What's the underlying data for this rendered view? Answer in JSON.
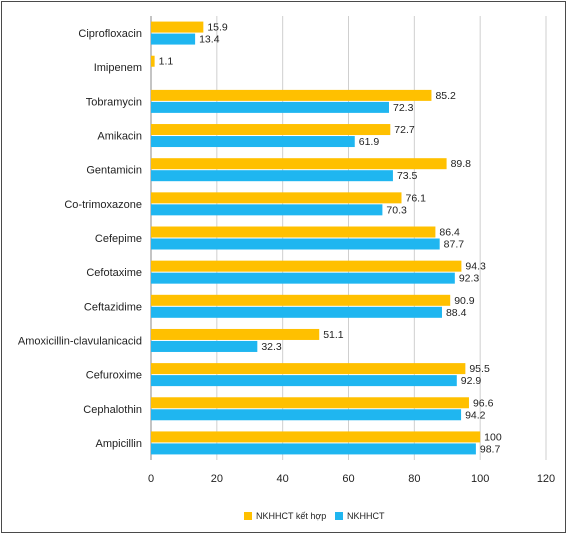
{
  "colors": {
    "series1": "#FFC000",
    "series2": "#1FB6F0",
    "grid": "#cfcfcf",
    "axis": "#8a8a8a"
  },
  "chart_data": {
    "type": "bar",
    "orientation": "horizontal",
    "categories": [
      "Ciprofloxacin",
      "Imipenem",
      "Tobramycin",
      "Amikacin",
      "Gentamicin",
      "Co-trimoxazone",
      "Cefepime",
      "Cefotaxime",
      "Ceftazidime",
      "Amoxicillin-clavulanicacid",
      "Cefuroxime",
      "Cephalothin",
      "Ampicillin"
    ],
    "series": [
      {
        "name": "NKHHCT kết hợp",
        "values": [
          15.9,
          1.1,
          85.2,
          72.7,
          89.8,
          76.1,
          86.4,
          94.3,
          90.9,
          51.1,
          95.5,
          96.6,
          100
        ]
      },
      {
        "name": "NKHHCT",
        "values": [
          13.4,
          null,
          72.3,
          61.9,
          73.5,
          70.3,
          87.7,
          92.3,
          88.4,
          32.3,
          92.9,
          94.2,
          98.7
        ]
      }
    ],
    "xlim": [
      0,
      120
    ],
    "xticks": [
      0,
      20,
      40,
      60,
      80,
      100,
      120
    ],
    "grid": "vertical",
    "legend": "bottom"
  }
}
